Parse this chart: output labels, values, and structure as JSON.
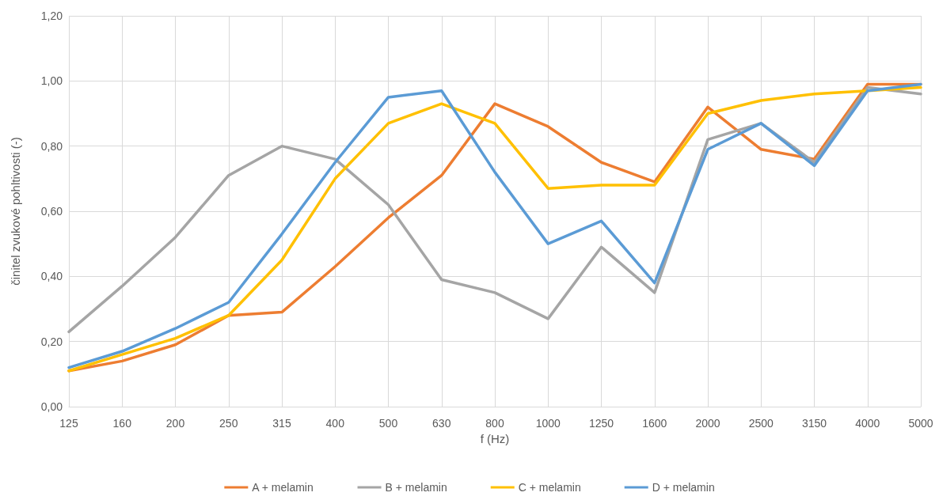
{
  "chart_data": {
    "type": "line",
    "xlabel": "f (Hz)",
    "ylabel": "činitel zvukové pohltivosti (-)",
    "categories": [
      "125",
      "160",
      "200",
      "250",
      "315",
      "400",
      "500",
      "630",
      "800",
      "1000",
      "1250",
      "1600",
      "2000",
      "2500",
      "3150",
      "4000",
      "5000"
    ],
    "series": [
      {
        "name": "A + melamin",
        "color": "#ed7d31",
        "values": [
          0.11,
          0.14,
          0.19,
          0.28,
          0.29,
          0.43,
          0.58,
          0.71,
          0.93,
          0.86,
          0.75,
          0.69,
          0.92,
          0.79,
          0.76,
          0.99,
          0.99
        ]
      },
      {
        "name": "B + melamin",
        "color": "#a5a5a5",
        "values": [
          0.23,
          0.37,
          0.52,
          0.71,
          0.8,
          0.76,
          0.62,
          0.39,
          0.35,
          0.27,
          0.49,
          0.35,
          0.82,
          0.87,
          0.75,
          0.98,
          0.96
        ]
      },
      {
        "name": "C + melamin",
        "color": "#ffc000",
        "values": [
          0.11,
          0.16,
          0.21,
          0.28,
          0.45,
          0.7,
          0.87,
          0.93,
          0.87,
          0.67,
          0.68,
          0.68,
          0.9,
          0.94,
          0.96,
          0.97,
          0.98
        ]
      },
      {
        "name": "D + melamin",
        "color": "#5b9bd5",
        "values": [
          0.12,
          0.17,
          0.24,
          0.32,
          0.53,
          0.75,
          0.95,
          0.97,
          0.72,
          0.5,
          0.57,
          0.38,
          0.79,
          0.87,
          0.74,
          0.97,
          0.99
        ]
      }
    ],
    "ylim": [
      0,
      1.2
    ],
    "yticks": [
      {
        "value": 0,
        "label": "0,00"
      },
      {
        "value": 0.2,
        "label": "0,20"
      },
      {
        "value": 0.4,
        "label": "0,40"
      },
      {
        "value": 0.6,
        "label": "0,60"
      },
      {
        "value": 0.8,
        "label": "0,80"
      },
      {
        "value": 1,
        "label": "1,00"
      },
      {
        "value": 1.2,
        "label": "1,20"
      }
    ],
    "grid": true,
    "legend": "bottom",
    "marker": "none",
    "line_style": "solid"
  }
}
